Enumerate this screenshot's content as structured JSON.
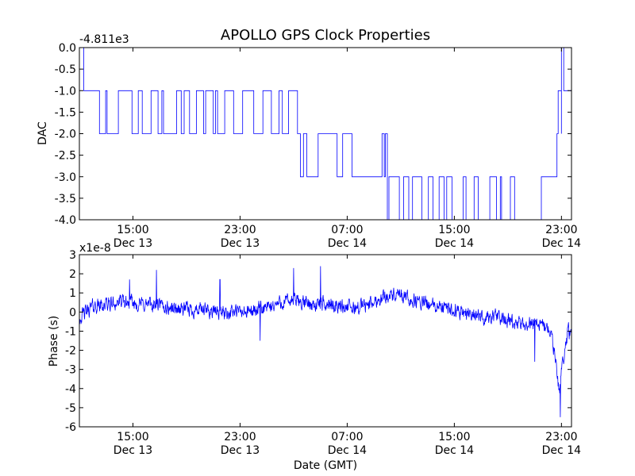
{
  "title": "APOLLO GPS Clock Properties",
  "chart_data": [
    {
      "type": "line",
      "ylabel": "DAC",
      "offset_text": "-4.811e3",
      "ylim": [
        -4.0,
        0.0
      ],
      "yticks": [
        "0.0",
        "-0.5",
        "-1.0",
        "-1.5",
        "-2.0",
        "-2.5",
        "-3.0",
        "-3.5",
        "-4.0"
      ],
      "xticks": [
        {
          "time": "15:00",
          "date": "Dec 13"
        },
        {
          "time": "23:00",
          "date": "Dec 13"
        },
        {
          "time": "07:00",
          "date": "Dec 14"
        },
        {
          "time": "15:00",
          "date": "Dec 14"
        },
        {
          "time": "23:00",
          "date": "Dec 14"
        }
      ],
      "x_range": [
        "Dec 13 11:00",
        "Dec 14 23:45"
      ],
      "series_color": "#0000ff",
      "segments": [
        {
          "start": "Dec 13 11:00",
          "end": "Dec 13 11:20",
          "level": 0,
          "toggle_level": -1
        },
        {
          "start": "Dec 13 11:20",
          "end": "Dec 13 12:00",
          "level": -1
        },
        {
          "start": "Dec 13 12:00",
          "end": "Dec 13 21:00",
          "level": -1,
          "toggle_level": -2
        },
        {
          "start": "Dec 13 21:00",
          "end": "Dec 14 03:30",
          "level": -2,
          "toggle_level": -1
        },
        {
          "start": "Dec 14 03:30",
          "end": "Dec 14 10:00",
          "level": -3,
          "toggle_level": -2
        },
        {
          "start": "Dec 14 10:00",
          "end": "Dec 14 19:30",
          "level": -4,
          "toggle_level": -3
        },
        {
          "start": "Dec 14 19:30",
          "end": "Dec 14 21:30",
          "level": -4
        },
        {
          "start": "Dec 14 21:30",
          "end": "Dec 14 22:40",
          "level": -3
        },
        {
          "start": "Dec 14 22:40",
          "end": "Dec 14 23:00",
          "level": -2,
          "toggle_level": -1
        },
        {
          "start": "Dec 14 23:00",
          "end": "Dec 14 23:10",
          "level": 0,
          "toggle_level": -1
        },
        {
          "start": "Dec 14 23:10",
          "end": "Dec 14 23:45",
          "level": -1,
          "toggle_level": -2
        }
      ]
    },
    {
      "type": "line",
      "ylabel": "Phase (s)",
      "xlabel": "Date (GMT)",
      "offset_text": "x1e-8",
      "ylim": [
        -6,
        3
      ],
      "yticks": [
        "3",
        "2",
        "1",
        "0",
        "-1",
        "-2",
        "-3",
        "-4",
        "-5",
        "-6"
      ],
      "xticks": [
        {
          "time": "15:00",
          "date": "Dec 13"
        },
        {
          "time": "23:00",
          "date": "Dec 13"
        },
        {
          "time": "07:00",
          "date": "Dec 14"
        },
        {
          "time": "15:00",
          "date": "Dec 14"
        },
        {
          "time": "23:00",
          "date": "Dec 14"
        }
      ],
      "x_range": [
        "Dec 13 11:00",
        "Dec 14 23:45"
      ],
      "series_color": "#0000ff",
      "trend": [
        {
          "t": "Dec 13 11:00",
          "y": -0.3
        },
        {
          "t": "Dec 13 12:00",
          "y": 0.3
        },
        {
          "t": "Dec 13 14:00",
          "y": 0.5
        },
        {
          "t": "Dec 13 16:00",
          "y": 0.4
        },
        {
          "t": "Dec 13 18:00",
          "y": 0.2
        },
        {
          "t": "Dec 13 20:00",
          "y": 0.1
        },
        {
          "t": "Dec 13 22:00",
          "y": 0.0
        },
        {
          "t": "Dec 13 23:30",
          "y": 0.0
        },
        {
          "t": "Dec 14 01:00",
          "y": 0.2
        },
        {
          "t": "Dec 14 02:00",
          "y": 0.5
        },
        {
          "t": "Dec 14 03:00",
          "y": 0.6
        },
        {
          "t": "Dec 14 04:30",
          "y": 0.4
        },
        {
          "t": "Dec 14 06:00",
          "y": 0.4
        },
        {
          "t": "Dec 14 07:30",
          "y": 0.2
        },
        {
          "t": "Dec 14 09:00",
          "y": 0.5
        },
        {
          "t": "Dec 14 10:00",
          "y": 0.9
        },
        {
          "t": "Dec 14 11:00",
          "y": 0.8
        },
        {
          "t": "Dec 14 12:00",
          "y": 0.6
        },
        {
          "t": "Dec 14 13:00",
          "y": 0.4
        },
        {
          "t": "Dec 14 14:00",
          "y": 0.2
        },
        {
          "t": "Dec 14 16:00",
          "y": 0.0
        },
        {
          "t": "Dec 14 17:00",
          "y": -0.3
        },
        {
          "t": "Dec 14 18:00",
          "y": -0.2
        },
        {
          "t": "Dec 14 19:00",
          "y": -0.5
        },
        {
          "t": "Dec 14 20:00",
          "y": -0.7
        },
        {
          "t": "Dec 14 21:00",
          "y": -0.5
        },
        {
          "t": "Dec 14 21:30",
          "y": -0.6
        },
        {
          "t": "Dec 14 22:00",
          "y": -0.9
        },
        {
          "t": "Dec 14 22:20",
          "y": -1.6
        },
        {
          "t": "Dec 14 22:40",
          "y": -3.0
        },
        {
          "t": "Dec 14 22:50",
          "y": -4.3
        },
        {
          "t": "Dec 14 23:00",
          "y": -3.0
        },
        {
          "t": "Dec 14 23:15",
          "y": -2.0
        },
        {
          "t": "Dec 14 23:30",
          "y": -1.0
        },
        {
          "t": "Dec 14 23:45",
          "y": -1.2
        }
      ],
      "extremes": [
        {
          "t": "Dec 13 14:45",
          "y": 1.7
        },
        {
          "t": "Dec 13 16:45",
          "y": 2.2
        },
        {
          "t": "Dec 13 21:30",
          "y": 1.7
        },
        {
          "t": "Dec 14 00:30",
          "y": -1.5
        },
        {
          "t": "Dec 14 03:00",
          "y": 2.3
        },
        {
          "t": "Dec 14 05:00",
          "y": 2.4
        },
        {
          "t": "Dec 14 21:00",
          "y": -2.6
        },
        {
          "t": "Dec 14 22:55",
          "y": -5.5
        }
      ],
      "noise_amplitude": 0.6
    }
  ]
}
